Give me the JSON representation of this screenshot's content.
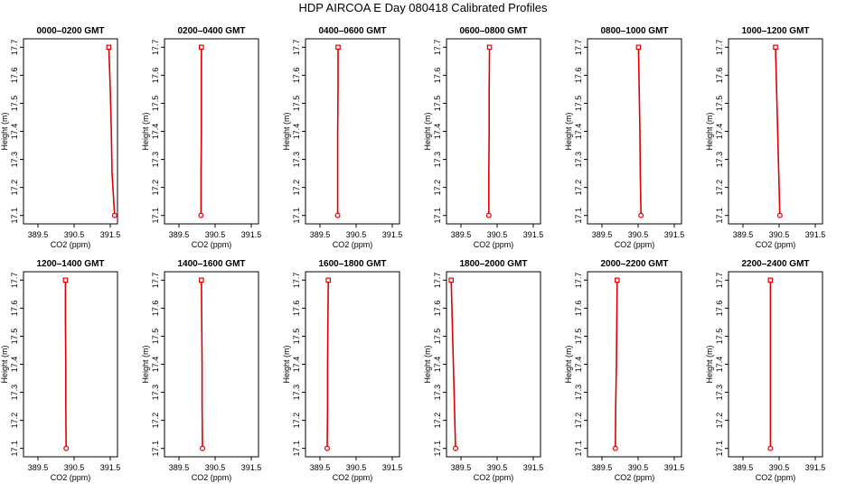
{
  "figure": {
    "title": "HDP  AIRCOA E  Day 080418  Calibrated Profiles"
  },
  "style": {
    "line_color": "#dd0000",
    "axis_color": "#000000"
  },
  "chart_data": [
    {
      "type": "line",
      "title": "0000–0200 GMT",
      "xlabel": "CO2 (ppm)",
      "ylabel": "Height (m)",
      "xlim": [
        389.1,
        391.7
      ],
      "ylim": [
        17.07,
        17.73
      ],
      "x_ticks": [
        "389.5",
        "390.5",
        "391.5"
      ],
      "y_ticks": [
        "17.1",
        "17.2",
        "17.3",
        "17.4",
        "17.5",
        "17.6",
        "17.7"
      ],
      "series": [
        {
          "x": [
            391.62,
            391.55,
            391.53,
            391.5,
            391.46
          ],
          "y": [
            17.1,
            17.25,
            17.4,
            17.55,
            17.7
          ]
        }
      ]
    },
    {
      "type": "line",
      "title": "0200–0400 GMT",
      "xlabel": "CO2 (ppm)",
      "ylabel": "Height (m)",
      "xlim": [
        389.1,
        391.7
      ],
      "ylim": [
        17.07,
        17.73
      ],
      "x_ticks": [
        "389.5",
        "390.5",
        "391.5"
      ],
      "y_ticks": [
        "17.1",
        "17.2",
        "17.3",
        "17.4",
        "17.5",
        "17.6",
        "17.7"
      ],
      "series": [
        {
          "x": [
            390.11,
            390.11,
            390.12,
            390.12,
            390.12
          ],
          "y": [
            17.1,
            17.25,
            17.4,
            17.55,
            17.7
          ]
        }
      ]
    },
    {
      "type": "line",
      "title": "0400–0600 GMT",
      "xlabel": "CO2 (ppm)",
      "ylabel": "Height (m)",
      "xlim": [
        389.1,
        391.7
      ],
      "ylim": [
        17.07,
        17.73
      ],
      "x_ticks": [
        "389.5",
        "390.5",
        "391.5"
      ],
      "y_ticks": [
        "17.1",
        "17.2",
        "17.3",
        "17.4",
        "17.5",
        "17.6",
        "17.7"
      ],
      "series": [
        {
          "x": [
            389.99,
            389.99,
            389.99,
            390.0,
            390.0
          ],
          "y": [
            17.1,
            17.25,
            17.4,
            17.55,
            17.7
          ]
        }
      ]
    },
    {
      "type": "line",
      "title": "0600–0800 GMT",
      "xlabel": "CO2 (ppm)",
      "ylabel": "Height (m)",
      "xlim": [
        389.1,
        391.7
      ],
      "ylim": [
        17.07,
        17.73
      ],
      "x_ticks": [
        "389.5",
        "390.5",
        "391.5"
      ],
      "y_ticks": [
        "17.1",
        "17.2",
        "17.3",
        "17.4",
        "17.5",
        "17.6",
        "17.7"
      ],
      "series": [
        {
          "x": [
            390.27,
            390.27,
            390.28,
            390.28,
            390.29
          ],
          "y": [
            17.1,
            17.25,
            17.4,
            17.55,
            17.7
          ]
        }
      ]
    },
    {
      "type": "line",
      "title": "0800–1000 GMT",
      "xlabel": "CO2 (ppm)",
      "ylabel": "Height (m)",
      "xlim": [
        389.1,
        391.7
      ],
      "ylim": [
        17.07,
        17.73
      ],
      "x_ticks": [
        "389.5",
        "390.5",
        "391.5"
      ],
      "y_ticks": [
        "17.1",
        "17.2",
        "17.3",
        "17.4",
        "17.5",
        "17.6",
        "17.7"
      ],
      "series": [
        {
          "x": [
            390.58,
            390.56,
            390.55,
            390.53,
            390.51
          ],
          "y": [
            17.1,
            17.25,
            17.4,
            17.55,
            17.7
          ]
        }
      ]
    },
    {
      "type": "line",
      "title": "1000–1200 GMT",
      "xlabel": "CO2 (ppm)",
      "ylabel": "Height (m)",
      "xlim": [
        389.1,
        391.7
      ],
      "ylim": [
        17.07,
        17.73
      ],
      "x_ticks": [
        "389.5",
        "390.5",
        "391.5"
      ],
      "y_ticks": [
        "17.1",
        "17.2",
        "17.3",
        "17.4",
        "17.5",
        "17.6",
        "17.7"
      ],
      "series": [
        {
          "x": [
            390.52,
            390.49,
            390.46,
            390.43,
            390.4
          ],
          "y": [
            17.1,
            17.25,
            17.4,
            17.55,
            17.7
          ]
        }
      ]
    },
    {
      "type": "line",
      "title": "1200–1400 GMT",
      "xlabel": "CO2 (ppm)",
      "ylabel": "Height (m)",
      "xlim": [
        389.1,
        391.7
      ],
      "ylim": [
        17.07,
        17.73
      ],
      "x_ticks": [
        "389.5",
        "390.5",
        "391.5"
      ],
      "y_ticks": [
        "17.1",
        "17.2",
        "17.3",
        "17.4",
        "17.5",
        "17.6",
        "17.7"
      ],
      "series": [
        {
          "x": [
            390.28,
            390.27,
            390.27,
            390.26,
            390.26
          ],
          "y": [
            17.1,
            17.25,
            17.4,
            17.55,
            17.7
          ]
        }
      ]
    },
    {
      "type": "line",
      "title": "1400–1600 GMT",
      "xlabel": "CO2 (ppm)",
      "ylabel": "Height (m)",
      "xlim": [
        389.1,
        391.7
      ],
      "ylim": [
        17.07,
        17.73
      ],
      "x_ticks": [
        "389.5",
        "390.5",
        "391.5"
      ],
      "y_ticks": [
        "17.1",
        "17.2",
        "17.3",
        "17.4",
        "17.5",
        "17.6",
        "17.7"
      ],
      "series": [
        {
          "x": [
            390.15,
            390.14,
            390.14,
            390.13,
            390.12
          ],
          "y": [
            17.1,
            17.25,
            17.4,
            17.55,
            17.7
          ]
        }
      ]
    },
    {
      "type": "line",
      "title": "1600–1800 GMT",
      "xlabel": "CO2 (ppm)",
      "ylabel": "Height (m)",
      "xlim": [
        389.1,
        391.7
      ],
      "ylim": [
        17.07,
        17.73
      ],
      "x_ticks": [
        "389.5",
        "390.5",
        "391.5"
      ],
      "y_ticks": [
        "17.1",
        "17.2",
        "17.3",
        "17.4",
        "17.5",
        "17.6",
        "17.7"
      ],
      "series": [
        {
          "x": [
            389.7,
            389.71,
            389.71,
            389.72,
            389.73
          ],
          "y": [
            17.1,
            17.25,
            17.4,
            17.55,
            17.7
          ]
        }
      ]
    },
    {
      "type": "line",
      "title": "1800–2000 GMT",
      "xlabel": "CO2 (ppm)",
      "ylabel": "Height (m)",
      "xlim": [
        389.1,
        391.7
      ],
      "ylim": [
        17.07,
        17.73
      ],
      "x_ticks": [
        "389.5",
        "390.5",
        "391.5"
      ],
      "y_ticks": [
        "17.1",
        "17.2",
        "17.3",
        "17.4",
        "17.5",
        "17.6",
        "17.7"
      ],
      "series": [
        {
          "x": [
            389.35,
            389.32,
            389.29,
            389.26,
            389.23
          ],
          "y": [
            17.1,
            17.25,
            17.4,
            17.55,
            17.7
          ]
        }
      ]
    },
    {
      "type": "line",
      "title": "2000–2200 GMT",
      "xlabel": "CO2 (ppm)",
      "ylabel": "Height (m)",
      "xlim": [
        389.1,
        391.7
      ],
      "ylim": [
        17.07,
        17.73
      ],
      "x_ticks": [
        "389.5",
        "390.5",
        "391.5"
      ],
      "y_ticks": [
        "17.1",
        "17.2",
        "17.3",
        "17.4",
        "17.5",
        "17.6",
        "17.7"
      ],
      "series": [
        {
          "x": [
            389.87,
            389.88,
            389.9,
            389.91,
            389.92
          ],
          "y": [
            17.1,
            17.25,
            17.4,
            17.55,
            17.7
          ]
        }
      ]
    },
    {
      "type": "line",
      "title": "2200–2400 GMT",
      "xlabel": "CO2 (ppm)",
      "ylabel": "Height (m)",
      "xlim": [
        389.1,
        391.7
      ],
      "ylim": [
        17.07,
        17.73
      ],
      "x_ticks": [
        "389.5",
        "390.5",
        "391.5"
      ],
      "y_ticks": [
        "17.1",
        "17.2",
        "17.3",
        "17.4",
        "17.5",
        "17.6",
        "17.7"
      ],
      "series": [
        {
          "x": [
            390.26,
            390.26,
            390.26,
            390.26,
            390.26
          ],
          "y": [
            17.1,
            17.25,
            17.4,
            17.55,
            17.7
          ]
        }
      ]
    }
  ]
}
